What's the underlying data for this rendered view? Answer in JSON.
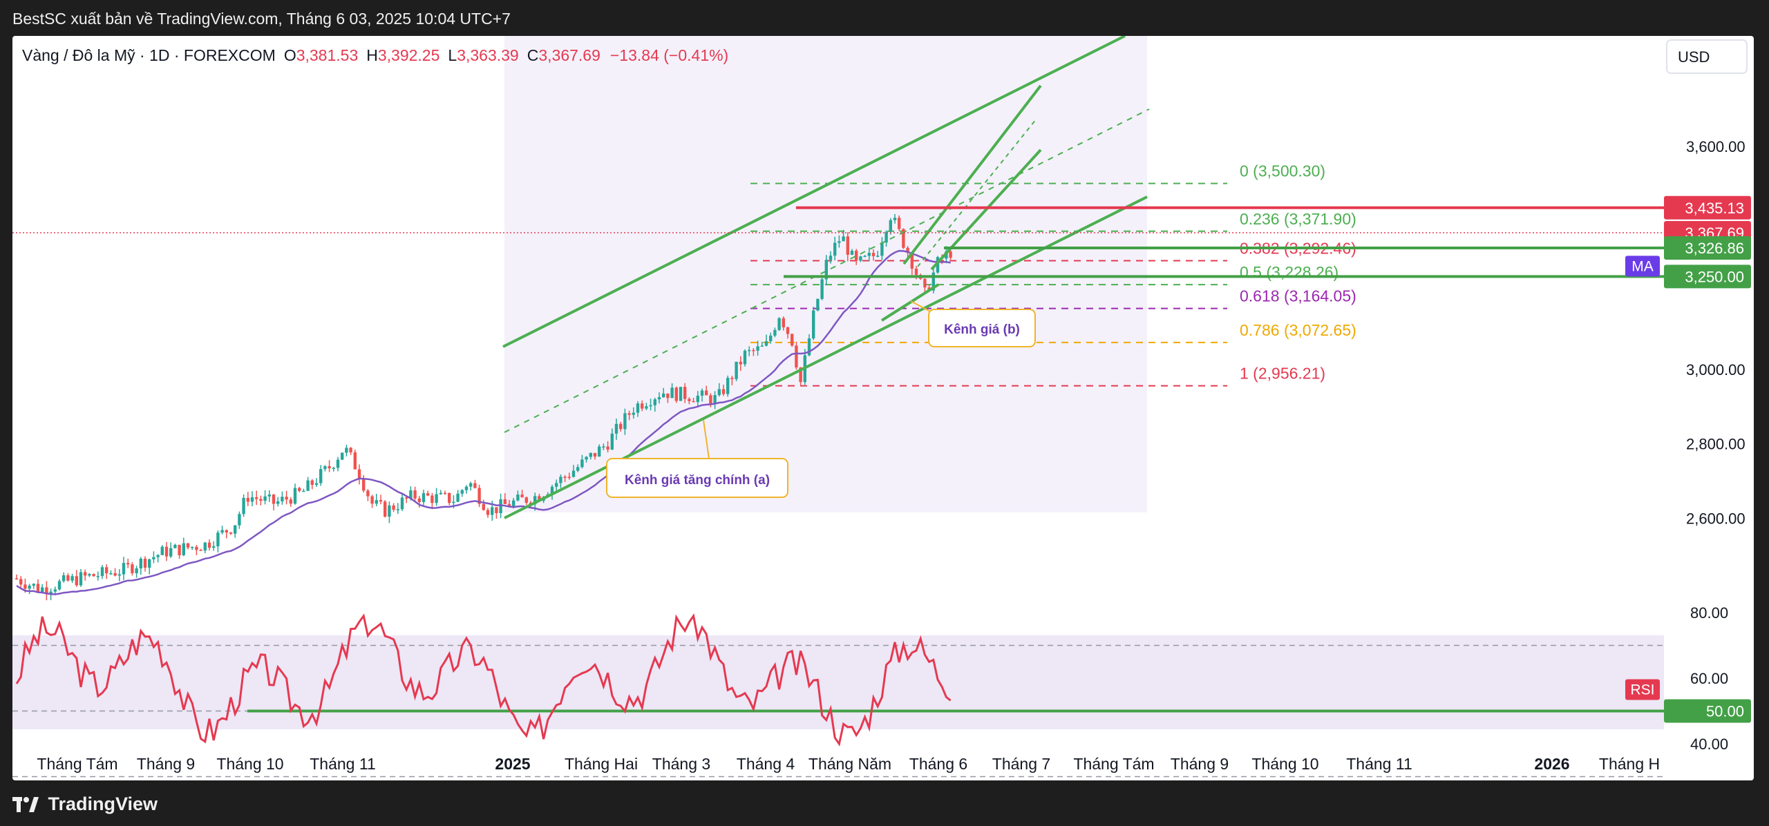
{
  "publisher": "BestSC xuất bản về TradingView.com, Tháng 6 03, 2025 10:04 UTC+7",
  "footer_brand": "TradingView",
  "chart_data": {
    "type": "candlestick",
    "symbol_title": "Vàng / Đô la Mỹ · 1D · FOREXCOM",
    "ohlc": {
      "O_label": "O",
      "O": "3,381.53",
      "H_label": "H",
      "H": "3,392.25",
      "L_label": "L",
      "L": "3,363.39",
      "C_label": "C",
      "C": "3,367.69",
      "change": "−13.84 (−0.41%)"
    },
    "currency": "USD",
    "y_axis_ticks": [
      "3,600.00",
      "3,000.00",
      "2,800.00",
      "2,600.00"
    ],
    "y_tick_values": [
      3600,
      3000,
      2800,
      2600
    ],
    "x_axis_ticks": [
      "Tháng Tám",
      "Tháng 9",
      "Tháng 10",
      "Tháng 11",
      "2025",
      "Tháng Hai",
      "Tháng 3",
      "Tháng 4",
      "Tháng Năm",
      "Tháng 6",
      "Tháng 7",
      "Tháng Tám",
      "Tháng 9",
      "Tháng 10",
      "Tháng 11",
      "2026",
      "Tháng H"
    ],
    "x_axis_bold": [
      false,
      false,
      false,
      false,
      true,
      false,
      false,
      false,
      false,
      false,
      false,
      false,
      false,
      false,
      false,
      true,
      false
    ],
    "fibonacci": [
      {
        "label": "0 (3,500.30)",
        "value": 3500.3,
        "color": "#4caf50"
      },
      {
        "label": "0.236 (3,371.90)",
        "value": 3371.9,
        "color": "#4caf50"
      },
      {
        "label": "0.382 (3,292.46)",
        "value": 3292.46,
        "color": "#e53950"
      },
      {
        "label": "0.5 (3,228.26)",
        "value": 3228.26,
        "color": "#4caf50"
      },
      {
        "label": "0.618 (3,164.05)",
        "value": 3164.05,
        "color": "#9c27b0"
      },
      {
        "label": "0.786 (3,072.65)",
        "value": 3072.65,
        "color": "#f0a800"
      },
      {
        "label": "1 (2,956.21)",
        "value": 2956.21,
        "color": "#e53950"
      }
    ],
    "price_labels": [
      {
        "text": "3,435.13",
        "value": 3435.13,
        "color": "#e53950"
      },
      {
        "text": "3,367.69",
        "value": 3367.69,
        "color": "#e53950"
      },
      {
        "text": "3,326.86",
        "value": 3326.86,
        "color": "#43a047"
      },
      {
        "text": "3,250.00",
        "value": 3250.0,
        "color": "#43a047"
      }
    ],
    "ma_tag": "MA",
    "annotations": {
      "channel_a": "Kênh giá tăng chính (a)",
      "channel_b": "Kênh giá (b)"
    },
    "rsi": {
      "tag": "RSI",
      "ticks": [
        "80.00",
        "60.00",
        "40.00"
      ],
      "tick_values": [
        80,
        60,
        40
      ],
      "level_label": "50.00",
      "level": 50
    },
    "colors": {
      "up": "#26a69a",
      "down": "#ef5350",
      "ma": "#7e57c2",
      "channel": "#4caf50",
      "rsi": "#e53950"
    }
  }
}
